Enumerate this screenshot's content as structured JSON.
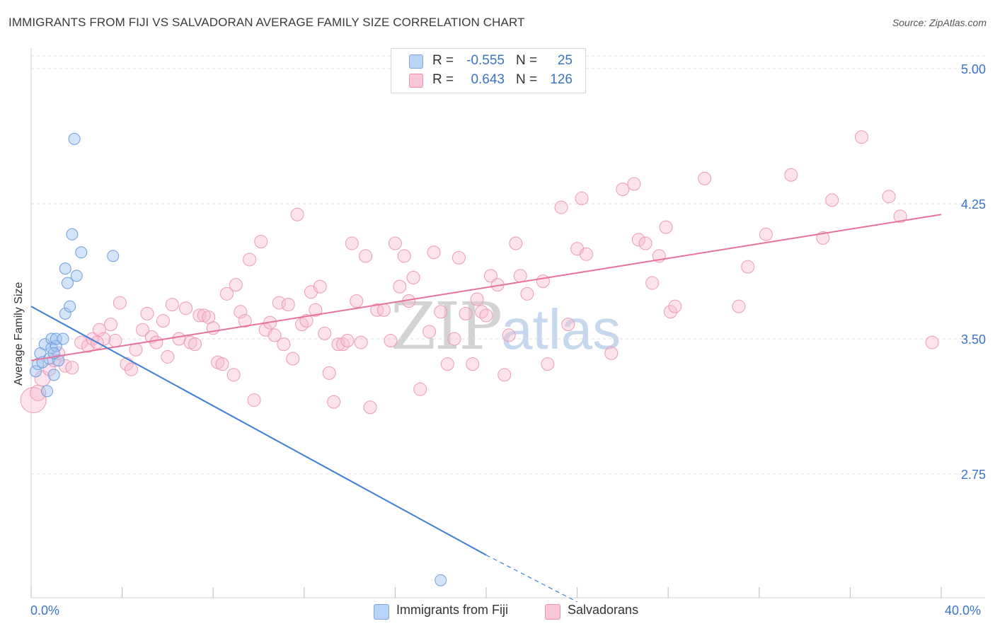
{
  "title": "IMMIGRANTS FROM FIJI VS SALVADORAN AVERAGE FAMILY SIZE CORRELATION CHART",
  "source": "Source: ZipAtlas.com",
  "watermark": {
    "zip": "ZIP",
    "atlas": "atlas"
  },
  "stats": [
    {
      "r_label": "R =",
      "r_value": "-0.555",
      "n_label": "N =",
      "n_value": "25",
      "swatch_fill": "#b8d3f5",
      "swatch_stroke": "#7aa6de"
    },
    {
      "r_label": "R =",
      "r_value": "0.643",
      "n_label": "N =",
      "n_value": "126",
      "swatch_fill": "#f9c6d6",
      "swatch_stroke": "#ec93b1"
    }
  ],
  "x_axis": {
    "min_label": "0.0%",
    "max_label": "40.0%"
  },
  "colors": {
    "fiji_fill": "rgba(160,195,240,0.45)",
    "fiji_stroke": "#6f9fdc",
    "fiji_line": "#3b7fd6",
    "salv_fill": "rgba(247,190,210,0.45)",
    "salv_stroke": "#ec9ab6",
    "salv_line": "#e8719b",
    "tick_label": "#3a74c9",
    "grid": "#dcdcdc"
  },
  "chart_data": {
    "type": "scatter",
    "title": "IMMIGRANTS FROM FIJI VS SALVADORAN AVERAGE FAMILY SIZE CORRELATION CHART",
    "xlabel": "",
    "ylabel": "Average Family Size",
    "xlim": [
      0,
      40
    ],
    "ylim": [
      2.2,
      5.1
    ],
    "y_ticks": [
      2.75,
      3.5,
      4.25,
      5.0
    ],
    "y_tick_labels": [
      "2.75",
      "3.50",
      "4.25",
      "5.00"
    ],
    "x_tick_labels": [
      "0.0%",
      "40.0%"
    ],
    "grid": true,
    "legend_position": "bottom",
    "series": [
      {
        "name": "Immigrants from Fiji",
        "r": -0.555,
        "n": 25,
        "points": [
          [
            0.2,
            3.32
          ],
          [
            0.3,
            3.36
          ],
          [
            0.4,
            3.42
          ],
          [
            0.5,
            3.37
          ],
          [
            0.6,
            3.47
          ],
          [
            0.7,
            3.21
          ],
          [
            0.8,
            3.39
          ],
          [
            0.9,
            3.45
          ],
          [
            0.9,
            3.5
          ],
          [
            1.0,
            3.3
          ],
          [
            1.1,
            3.46
          ],
          [
            1.1,
            3.5
          ],
          [
            1.2,
            3.38
          ],
          [
            1.4,
            3.5
          ],
          [
            1.5,
            3.64
          ],
          [
            1.5,
            3.89
          ],
          [
            1.6,
            3.81
          ],
          [
            1.7,
            3.68
          ],
          [
            1.8,
            4.08
          ],
          [
            1.9,
            4.61
          ],
          [
            2.0,
            3.85
          ],
          [
            2.2,
            3.98
          ],
          [
            3.6,
            3.96
          ],
          [
            18.0,
            2.16
          ],
          [
            1.0,
            3.42
          ]
        ],
        "trend": {
          "x0": 0,
          "y0": 3.68,
          "x1": 20,
          "y1": 2.3,
          "dash_to_x": 24,
          "dash_to_y": 2.04
        }
      },
      {
        "name": "Salvadorans",
        "r": 0.643,
        "n": 126,
        "points": [
          [
            0.1,
            3.16
          ],
          [
            0.3,
            3.2
          ],
          [
            0.5,
            3.28
          ],
          [
            0.8,
            3.33
          ],
          [
            1.0,
            3.38
          ],
          [
            1.2,
            3.42
          ],
          [
            1.5,
            3.35
          ],
          [
            1.8,
            3.34
          ],
          [
            2.2,
            3.48
          ],
          [
            2.5,
            3.46
          ],
          [
            2.7,
            3.5
          ],
          [
            3.0,
            3.55
          ],
          [
            3.2,
            3.5
          ],
          [
            3.5,
            3.58
          ],
          [
            3.7,
            3.49
          ],
          [
            3.9,
            3.7
          ],
          [
            4.2,
            3.36
          ],
          [
            4.4,
            3.33
          ],
          [
            4.6,
            3.44
          ],
          [
            4.9,
            3.55
          ],
          [
            5.1,
            3.64
          ],
          [
            5.3,
            3.51
          ],
          [
            5.5,
            3.48
          ],
          [
            5.8,
            3.6
          ],
          [
            6.0,
            3.4
          ],
          [
            6.2,
            3.69
          ],
          [
            6.5,
            3.5
          ],
          [
            6.8,
            3.67
          ],
          [
            7.0,
            3.48
          ],
          [
            7.2,
            3.47
          ],
          [
            7.4,
            3.63
          ],
          [
            7.6,
            3.63
          ],
          [
            7.8,
            3.62
          ],
          [
            8.0,
            3.56
          ],
          [
            8.2,
            3.37
          ],
          [
            8.4,
            3.36
          ],
          [
            8.6,
            3.75
          ],
          [
            8.9,
            3.3
          ],
          [
            9.0,
            3.8
          ],
          [
            9.2,
            3.65
          ],
          [
            9.4,
            3.6
          ],
          [
            9.6,
            3.94
          ],
          [
            9.8,
            3.16
          ],
          [
            10.1,
            4.04
          ],
          [
            10.3,
            3.55
          ],
          [
            10.5,
            3.59
          ],
          [
            10.7,
            3.52
          ],
          [
            10.9,
            3.7
          ],
          [
            11.1,
            3.47
          ],
          [
            11.3,
            3.69
          ],
          [
            11.5,
            3.39
          ],
          [
            11.7,
            4.19
          ],
          [
            11.9,
            3.58
          ],
          [
            12.1,
            3.6
          ],
          [
            12.3,
            3.76
          ],
          [
            12.5,
            3.66
          ],
          [
            12.7,
            3.79
          ],
          [
            12.9,
            3.53
          ],
          [
            13.1,
            3.31
          ],
          [
            13.3,
            3.15
          ],
          [
            13.5,
            3.47
          ],
          [
            13.7,
            3.47
          ],
          [
            13.9,
            3.49
          ],
          [
            14.1,
            4.03
          ],
          [
            14.3,
            3.71
          ],
          [
            14.5,
            3.48
          ],
          [
            14.7,
            3.96
          ],
          [
            14.9,
            3.12
          ],
          [
            15.2,
            3.66
          ],
          [
            15.5,
            3.66
          ],
          [
            15.8,
            3.49
          ],
          [
            16.0,
            4.03
          ],
          [
            16.2,
            3.79
          ],
          [
            16.4,
            3.96
          ],
          [
            16.6,
            3.71
          ],
          [
            16.8,
            3.84
          ],
          [
            17.1,
            3.22
          ],
          [
            17.5,
            3.54
          ],
          [
            17.7,
            3.98
          ],
          [
            18.0,
            3.65
          ],
          [
            18.3,
            3.36
          ],
          [
            18.6,
            3.5
          ],
          [
            18.8,
            3.95
          ],
          [
            19.1,
            3.64
          ],
          [
            19.4,
            3.36
          ],
          [
            19.6,
            3.72
          ],
          [
            19.8,
            3.65
          ],
          [
            20.0,
            3.63
          ],
          [
            20.2,
            3.85
          ],
          [
            20.5,
            3.8
          ],
          [
            20.8,
            3.3
          ],
          [
            21.0,
            3.52
          ],
          [
            21.3,
            4.03
          ],
          [
            21.5,
            3.85
          ],
          [
            21.8,
            3.75
          ],
          [
            22.5,
            3.82
          ],
          [
            22.7,
            3.36
          ],
          [
            23.3,
            4.23
          ],
          [
            23.6,
            3.58
          ],
          [
            24.0,
            4.0
          ],
          [
            24.2,
            4.28
          ],
          [
            24.4,
            3.97
          ],
          [
            25.5,
            3.42
          ],
          [
            26.0,
            4.33
          ],
          [
            26.5,
            4.36
          ],
          [
            26.7,
            4.05
          ],
          [
            27.0,
            4.03
          ],
          [
            27.3,
            3.81
          ],
          [
            27.6,
            3.96
          ],
          [
            27.9,
            4.12
          ],
          [
            28.1,
            3.65
          ],
          [
            28.3,
            3.68
          ],
          [
            29.6,
            4.39
          ],
          [
            31.1,
            3.68
          ],
          [
            31.5,
            3.9
          ],
          [
            32.3,
            4.08
          ],
          [
            33.4,
            4.41
          ],
          [
            34.8,
            4.06
          ],
          [
            35.2,
            4.27
          ],
          [
            36.5,
            4.62
          ],
          [
            37.7,
            4.29
          ],
          [
            38.2,
            4.18
          ],
          [
            39.6,
            3.48
          ],
          [
            2.9,
            3.48
          ]
        ],
        "trend": {
          "x0": 0,
          "y0": 3.38,
          "x1": 40,
          "y1": 4.19
        }
      }
    ]
  },
  "legend": [
    {
      "label": "Immigrants from Fiji",
      "swatch_fill": "#b8d3f5",
      "swatch_stroke": "#7aa6de"
    },
    {
      "label": "Salvadorans",
      "swatch_fill": "#f9c6d6",
      "swatch_stroke": "#ec93b1"
    }
  ]
}
